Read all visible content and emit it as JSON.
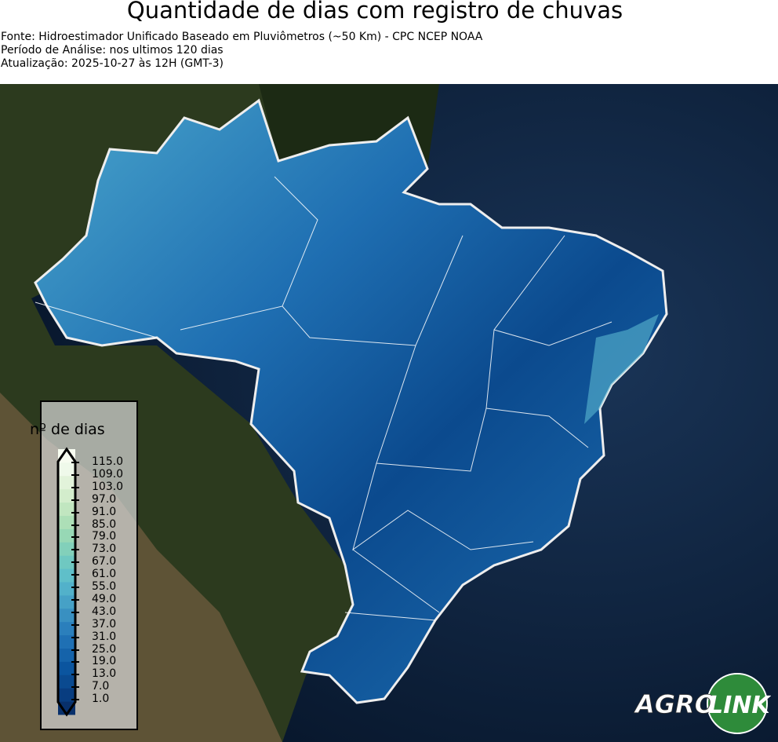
{
  "header": {
    "title": "Quantidade de dias com registro de chuvas",
    "source": "Fonte: Hidroestimador Unificado Baseado em Pluviômetros (~50 Km) - CPC NCEP NOAA",
    "period": "Período de Análise: nos ultimos 120 dias",
    "updated": "Atualização: 2025-10-27 às 12H (GMT-3)"
  },
  "legend": {
    "title": "nº de dias",
    "ticks": [
      "115.0",
      "109.0",
      "103.0",
      "97.0",
      "91.0",
      "85.0",
      "79.0",
      "73.0",
      "67.0",
      "61.0",
      "55.0",
      "49.0",
      "43.0",
      "37.0",
      "31.0",
      "25.0",
      "19.0",
      "13.0",
      "7.0",
      "1.0"
    ],
    "colors": [
      "#08306b",
      "#083d80",
      "#0a4a90",
      "#0b559f",
      "#1563aa",
      "#1f70b4",
      "#2b7fbc",
      "#3990c1",
      "#46a1c6",
      "#52b1ca",
      "#5fbfc9",
      "#6fc8c1",
      "#82d0ba",
      "#97d8b5",
      "#addfb7",
      "#c1e6c0",
      "#d3edcc",
      "#e2f3da",
      "#eff9ea",
      "#f7fcf0"
    ]
  },
  "logo": {
    "text_left": "AGRO",
    "text_right": "LINK",
    "color": "#2e8b3a"
  },
  "map": {
    "ocean_color": "#0b1e3a",
    "land_color": "#3a3a22"
  }
}
